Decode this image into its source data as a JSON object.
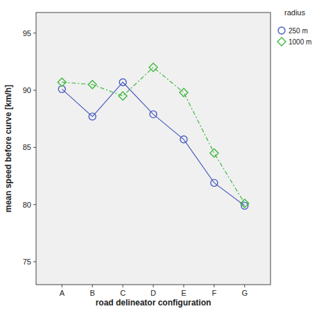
{
  "chart_data": {
    "type": "line",
    "x_label": "road delineator configuration",
    "y_label": "mean speed before curve [km/h]",
    "legend_title": "radius",
    "categories": [
      "A",
      "B",
      "C",
      "D",
      "E",
      "F",
      "G"
    ],
    "series": [
      {
        "name": "250 m",
        "color": "#4a5cc0",
        "marker": "circle",
        "line_style": "solid",
        "values": [
          90.1,
          87.7,
          90.7,
          87.9,
          85.7,
          81.9,
          79.9
        ]
      },
      {
        "name": "1000 m",
        "color": "#3db83d",
        "marker": "diamond",
        "line_style": "dashdot",
        "values": [
          90.7,
          90.5,
          89.5,
          92.0,
          89.8,
          84.5,
          80.1
        ]
      }
    ],
    "ylim": [
      73,
      96.8
    ],
    "yticks": [
      75,
      80,
      85,
      90,
      95
    ],
    "grid": false,
    "legend": "upper right"
  }
}
